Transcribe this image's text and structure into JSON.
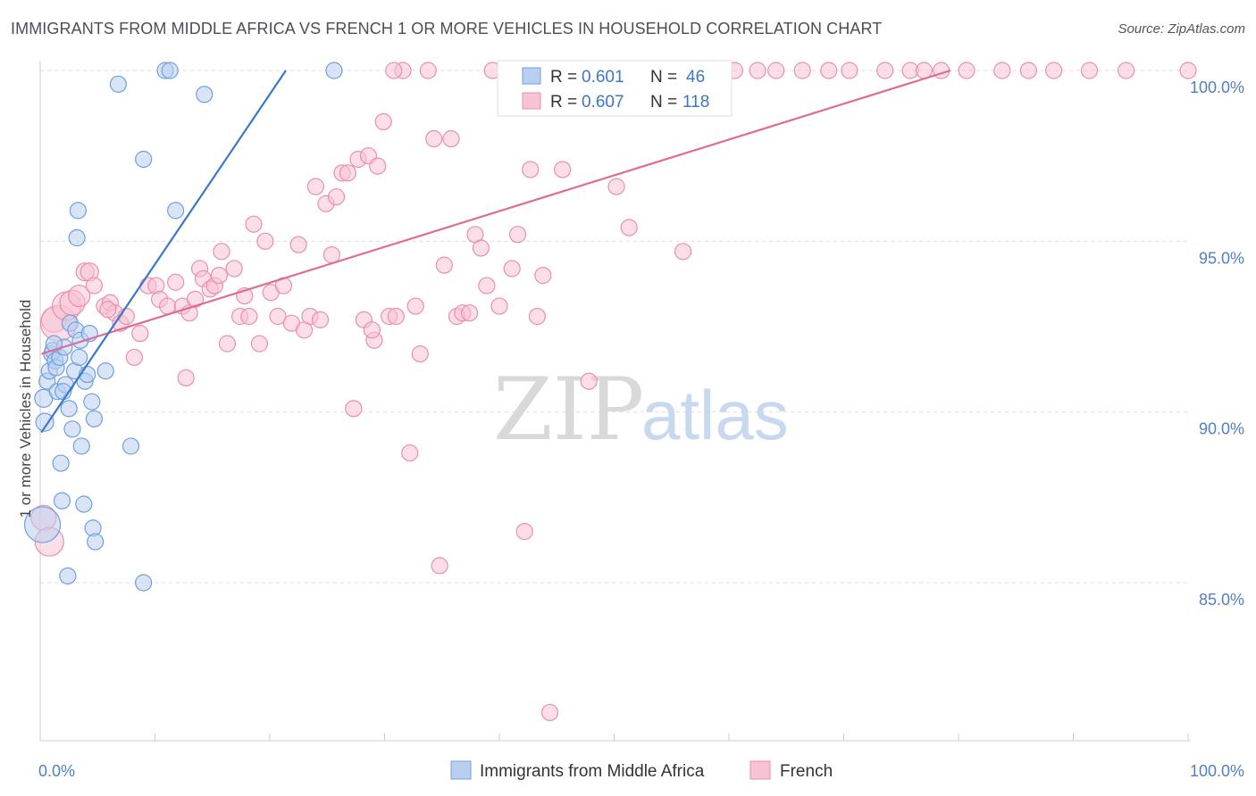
{
  "header": {
    "title": "IMMIGRANTS FROM MIDDLE AFRICA VS FRENCH 1 OR MORE VEHICLES IN HOUSEHOLD CORRELATION CHART",
    "source": "Source: ZipAtlas.com"
  },
  "watermark": {
    "zip": "ZIP",
    "atlas": "atlas"
  },
  "legend_top": {
    "rows": [
      {
        "r_label": "R =",
        "r_value": "0.601",
        "n_label": "N =",
        "n_value": "46"
      },
      {
        "r_label": "R =",
        "r_value": "0.607",
        "n_label": "N =",
        "n_value": "118"
      }
    ]
  },
  "legend_bottom": {
    "items": [
      {
        "label": "Immigrants from Middle Africa"
      },
      {
        "label": "French"
      }
    ]
  },
  "colors": {
    "blue_fill": "#b9cff0",
    "blue_stroke": "#6f9fe0",
    "blue_line": "#3a78cc",
    "pink_fill": "#f7c3d3",
    "pink_stroke": "#ea8fae",
    "pink_line": "#e06c96",
    "grid": "#dddddd",
    "tick_text": "#4f7fc6"
  },
  "chart_data": {
    "type": "scatter",
    "title": "IMMIGRANTS FROM MIDDLE AFRICA VS FRENCH 1 OR MORE VEHICLES IN HOUSEHOLD CORRELATION CHART",
    "xlabel": "",
    "ylabel": "1 or more Vehicles in Household",
    "xlim": [
      0,
      100
    ],
    "ylim": [
      80.5,
      101.0
    ],
    "y_ticks": [
      85.0,
      90.0,
      95.0,
      100.0
    ],
    "y_tick_labels": [
      "85.0%",
      "90.0%",
      "95.0%",
      "100.0%"
    ],
    "x_tick_labels": [
      "0.0%",
      "100.0%"
    ],
    "grid": true,
    "legend_placement": "top-center",
    "series": [
      {
        "name": "Immigrants from Middle Africa",
        "R": 0.601,
        "N": 46,
        "trend": {
          "x": [
            0.1,
            21.4
          ],
          "y": [
            89.4,
            100.0
          ]
        },
        "points": [
          [
            0.2,
            86.7,
            20
          ],
          [
            0.3,
            90.4,
            10
          ],
          [
            0.4,
            89.7,
            10
          ],
          [
            0.6,
            90.9,
            9
          ],
          [
            0.8,
            91.2,
            9
          ],
          [
            1.0,
            91.7,
            9
          ],
          [
            1.1,
            91.8,
            9
          ],
          [
            1.3,
            91.5,
            9
          ],
          [
            1.4,
            91.3,
            9
          ],
          [
            1.5,
            90.6,
            9
          ],
          [
            1.7,
            91.6,
            9
          ],
          [
            1.8,
            88.5,
            9
          ],
          [
            1.9,
            87.4,
            9
          ],
          [
            2.1,
            91.9,
            9
          ],
          [
            2.2,
            90.8,
            9
          ],
          [
            2.4,
            85.2,
            9
          ],
          [
            2.5,
            90.1,
            9
          ],
          [
            2.6,
            92.6,
            9
          ],
          [
            2.8,
            89.5,
            9
          ],
          [
            3.0,
            91.2,
            9
          ],
          [
            3.1,
            92.4,
            9
          ],
          [
            3.2,
            95.1,
            9
          ],
          [
            3.3,
            95.9,
            9
          ],
          [
            3.4,
            91.6,
            9
          ],
          [
            3.5,
            92.1,
            9
          ],
          [
            3.6,
            89.0,
            9
          ],
          [
            3.8,
            87.3,
            9
          ],
          [
            3.9,
            90.9,
            9
          ],
          [
            4.1,
            91.1,
            9
          ],
          [
            4.3,
            92.3,
            9
          ],
          [
            4.5,
            90.3,
            9
          ],
          [
            4.6,
            86.6,
            9
          ],
          [
            4.7,
            89.8,
            9
          ],
          [
            4.8,
            86.2,
            9
          ],
          [
            5.7,
            91.2,
            9
          ],
          [
            6.8,
            99.6,
            9
          ],
          [
            7.9,
            89.0,
            9
          ],
          [
            9.0,
            97.4,
            9
          ],
          [
            9.0,
            85.0,
            9
          ],
          [
            10.9,
            100.0,
            9
          ],
          [
            11.3,
            100.0,
            9
          ],
          [
            11.8,
            95.9,
            9
          ],
          [
            14.3,
            99.3,
            9
          ],
          [
            25.6,
            100.0,
            9
          ],
          [
            1.2,
            92.0,
            9
          ],
          [
            2.0,
            90.6,
            9
          ]
        ]
      },
      {
        "name": "French",
        "R": 0.607,
        "N": 118,
        "trend": {
          "x": [
            0.1,
            79.3
          ],
          "y": [
            91.7,
            100.0
          ]
        },
        "points": [
          [
            0.3,
            86.9,
            14
          ],
          [
            0.8,
            86.2,
            16
          ],
          [
            1.2,
            92.7,
            14
          ],
          [
            1.6,
            92.6,
            20
          ],
          [
            2.3,
            93.1,
            16
          ],
          [
            2.8,
            93.2,
            14
          ],
          [
            3.4,
            93.4,
            12
          ],
          [
            3.9,
            94.1,
            10
          ],
          [
            4.3,
            94.1,
            10
          ],
          [
            4.7,
            93.7,
            9
          ],
          [
            5.6,
            93.1,
            9
          ],
          [
            6.1,
            93.2,
            9
          ],
          [
            6.5,
            92.9,
            9
          ],
          [
            7.0,
            92.6,
            9
          ],
          [
            7.5,
            92.8,
            9
          ],
          [
            8.2,
            91.6,
            9
          ],
          [
            8.7,
            92.3,
            9
          ],
          [
            9.4,
            93.7,
            9
          ],
          [
            10.1,
            93.7,
            9
          ],
          [
            10.4,
            93.3,
            9
          ],
          [
            11.1,
            93.1,
            9
          ],
          [
            11.8,
            93.8,
            9
          ],
          [
            12.4,
            93.1,
            9
          ],
          [
            12.7,
            91.0,
            9
          ],
          [
            13.0,
            92.9,
            9
          ],
          [
            13.5,
            93.3,
            9
          ],
          [
            13.9,
            94.2,
            9
          ],
          [
            14.2,
            93.9,
            9
          ],
          [
            14.8,
            93.6,
            9
          ],
          [
            15.2,
            93.7,
            9
          ],
          [
            15.8,
            94.7,
            9
          ],
          [
            16.3,
            92.0,
            9
          ],
          [
            16.9,
            94.2,
            9
          ],
          [
            17.4,
            92.8,
            9
          ],
          [
            17.8,
            93.4,
            9
          ],
          [
            18.2,
            92.8,
            9
          ],
          [
            18.6,
            95.5,
            9
          ],
          [
            19.1,
            92.0,
            9
          ],
          [
            19.6,
            95.0,
            9
          ],
          [
            20.1,
            93.5,
            9
          ],
          [
            20.7,
            92.8,
            9
          ],
          [
            21.2,
            93.7,
            9
          ],
          [
            21.9,
            92.6,
            9
          ],
          [
            22.5,
            94.9,
            9
          ],
          [
            23.0,
            92.4,
            9
          ],
          [
            23.5,
            92.8,
            9
          ],
          [
            24.0,
            96.6,
            9
          ],
          [
            24.4,
            92.7,
            9
          ],
          [
            24.9,
            96.1,
            9
          ],
          [
            25.4,
            94.6,
            9
          ],
          [
            25.8,
            96.3,
            9
          ],
          [
            26.3,
            97.0,
            9
          ],
          [
            26.8,
            97.0,
            9
          ],
          [
            27.3,
            90.1,
            9
          ],
          [
            27.7,
            97.4,
            9
          ],
          [
            28.2,
            92.7,
            9
          ],
          [
            28.6,
            97.5,
            9
          ],
          [
            29.1,
            92.1,
            9
          ],
          [
            29.4,
            97.2,
            9
          ],
          [
            29.9,
            98.5,
            9
          ],
          [
            30.4,
            92.8,
            9
          ],
          [
            31.0,
            92.8,
            9
          ],
          [
            31.6,
            100.0,
            9
          ],
          [
            32.2,
            88.8,
            9
          ],
          [
            32.7,
            93.1,
            9
          ],
          [
            33.1,
            91.7,
            9
          ],
          [
            33.8,
            100.0,
            9
          ],
          [
            34.3,
            98.0,
            9
          ],
          [
            34.8,
            85.5,
            9
          ],
          [
            35.2,
            94.3,
            9
          ],
          [
            35.8,
            98.0,
            9
          ],
          [
            36.3,
            92.8,
            9
          ],
          [
            36.8,
            92.9,
            9
          ],
          [
            37.4,
            92.9,
            9
          ],
          [
            37.9,
            95.2,
            9
          ],
          [
            38.4,
            94.8,
            9
          ],
          [
            38.9,
            93.7,
            9
          ],
          [
            39.4,
            100.0,
            9
          ],
          [
            40.0,
            93.1,
            9
          ],
          [
            40.6,
            100.0,
            9
          ],
          [
            41.1,
            94.2,
            9
          ],
          [
            41.6,
            95.2,
            9
          ],
          [
            42.2,
            86.5,
            9
          ],
          [
            42.7,
            97.1,
            9
          ],
          [
            43.3,
            92.8,
            9
          ],
          [
            43.8,
            94.0,
            9
          ],
          [
            44.4,
            81.2,
            9
          ],
          [
            45.0,
            100.0,
            9
          ],
          [
            45.5,
            97.1,
            9
          ],
          [
            46.1,
            100.0,
            9
          ],
          [
            47.8,
            90.9,
            9
          ],
          [
            50.2,
            96.6,
            9
          ],
          [
            51.3,
            95.4,
            9
          ],
          [
            52.0,
            100.0,
            9
          ],
          [
            54.6,
            100.0,
            9
          ],
          [
            56.0,
            94.7,
            9
          ],
          [
            59.2,
            100.0,
            9
          ],
          [
            60.5,
            100.0,
            9
          ],
          [
            62.5,
            100.0,
            9
          ],
          [
            64.1,
            100.0,
            9
          ],
          [
            66.4,
            100.0,
            9
          ],
          [
            68.7,
            100.0,
            9
          ],
          [
            70.5,
            100.0,
            9
          ],
          [
            73.6,
            100.0,
            9
          ],
          [
            75.8,
            100.0,
            9
          ],
          [
            77.0,
            100.0,
            9
          ],
          [
            78.5,
            100.0,
            9
          ],
          [
            80.7,
            100.0,
            9
          ],
          [
            83.8,
            100.0,
            9
          ],
          [
            86.1,
            100.0,
            9
          ],
          [
            88.3,
            100.0,
            9
          ],
          [
            91.4,
            100.0,
            9
          ],
          [
            94.6,
            100.0,
            9
          ],
          [
            100.0,
            100.0,
            9
          ],
          [
            28.9,
            92.4,
            9
          ],
          [
            15.6,
            94.0,
            9
          ],
          [
            5.9,
            93.0,
            9
          ],
          [
            30.8,
            100.0,
            9
          ]
        ]
      }
    ]
  }
}
